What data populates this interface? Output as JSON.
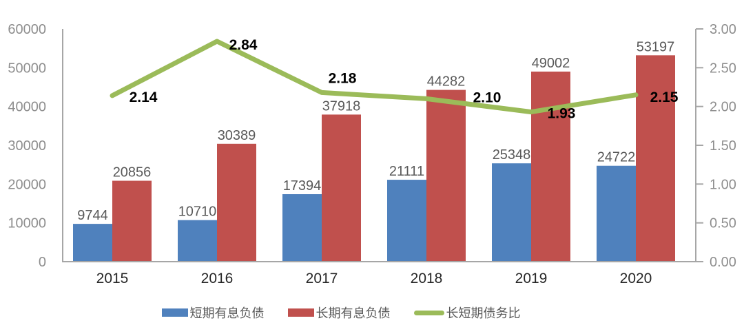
{
  "chart_data": {
    "type": "combo-bar-line",
    "title": "",
    "categories": [
      "2015",
      "2016",
      "2017",
      "2018",
      "2019",
      "2020"
    ],
    "series": [
      {
        "name": "短期有息负债",
        "type": "bar",
        "axis": "left",
        "color": "#4F81BD",
        "values": [
          9744,
          10710,
          17394,
          21111,
          25348,
          24722
        ],
        "value_labels": [
          "9744",
          "10710",
          "17394",
          "21111",
          "25348",
          "24722"
        ]
      },
      {
        "name": "长期有息负债",
        "type": "bar",
        "axis": "left",
        "color": "#C0504D",
        "values": [
          20856,
          30389,
          37918,
          44282,
          49002,
          53197
        ],
        "value_labels": [
          "20856",
          "30389",
          "37918",
          "44282",
          "49002",
          "53197"
        ]
      },
      {
        "name": "长短期债务比",
        "type": "line",
        "axis": "right",
        "color": "#9BBB59",
        "values": [
          2.14,
          2.84,
          2.18,
          2.1,
          1.93,
          2.15
        ],
        "value_labels": [
          "2.14",
          "2.84",
          "2.18",
          "2.10",
          "1.93",
          "2.15"
        ]
      }
    ],
    "left_axis": {
      "min": 0,
      "max": 60000,
      "tick_step": 10000,
      "tick_labels": [
        "0",
        "10000",
        "20000",
        "30000",
        "40000",
        "50000",
        "60000"
      ]
    },
    "right_axis": {
      "min": 0,
      "max": 3,
      "tick_step": 0.5,
      "tick_labels": [
        "0.00",
        "0.50",
        "1.00",
        "1.50",
        "2.00",
        "2.50",
        "3.00"
      ]
    },
    "grid": false,
    "legend_position": "bottom"
  },
  "legend": {
    "items": [
      {
        "label": "短期有息负债",
        "color": "#4F81BD",
        "marker": "bar"
      },
      {
        "label": "长期有息负债",
        "color": "#C0504D",
        "marker": "bar"
      },
      {
        "label": "长短期债务比",
        "color": "#9BBB59",
        "marker": "line"
      }
    ]
  },
  "colors": {
    "axis_line": "#A6A6A6",
    "axis_tick_label": "#8E8E8E",
    "bar_value_label": "#595959",
    "line_value_label": "#000000",
    "category_label": "#262626",
    "background": "#FFFFFF"
  }
}
